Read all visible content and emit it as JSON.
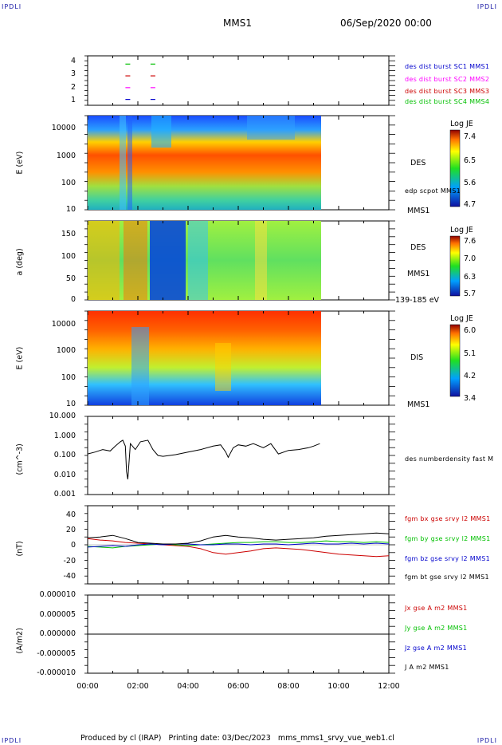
{
  "corner_label": "IPDLI",
  "header": {
    "spacecraft": "MMS1",
    "date": "06/Sep/2020 00:00"
  },
  "footer": {
    "text": "Produced by cl (IRAP)   Printing date: 03/Dec/2023   mms_mms1_srvy_vue_web1.cl"
  },
  "colors": {
    "red": "#ff0000",
    "green": "#00c000",
    "blue": "#0000ff",
    "magenta": "#ff00ff",
    "black": "#000000"
  },
  "chart_data": [
    {
      "type": "scatter",
      "panel": "burst availability",
      "yticks": [
        "4",
        "3",
        "2",
        "1"
      ],
      "legend": [
        {
          "label": "des dist burst SC1 MMS1",
          "color": "#0000cc"
        },
        {
          "label": "des dist burst SC2 MMS2",
          "color": "#ff00ff"
        },
        {
          "label": "des dist burst SC3 MMS3",
          "color": "#cc0000"
        },
        {
          "label": "des dist burst SC4 MMS4",
          "color": "#00c000"
        }
      ],
      "marks": [
        {
          "sc": 4,
          "t": [
            1.6,
            2.6
          ]
        },
        {
          "sc": 3,
          "t": [
            1.6,
            2.6
          ]
        },
        {
          "sc": 2,
          "t": [
            1.6,
            2.6
          ]
        },
        {
          "sc": 1,
          "t": [
            1.6,
            2.6
          ]
        }
      ]
    },
    {
      "type": "heatmap",
      "panel": "DES energy spectrogram",
      "ylabel": "E (eV)",
      "yticks": [
        "10000",
        "1000",
        "100",
        "10"
      ],
      "right_labels": [
        "DES",
        "edp scpot MMS1",
        "MMS1"
      ],
      "colorbar": {
        "title": "Log JE",
        "ticks": [
          "7.4",
          "6.5",
          "5.6",
          "4.7"
        ],
        "range": [
          4.7,
          7.4
        ]
      },
      "data_end_hours": 9.25
    },
    {
      "type": "heatmap",
      "panel": "DES pitch angle",
      "ylabel": "a (deg)",
      "yticks": [
        "150",
        "100",
        "50",
        "0"
      ],
      "right_labels": [
        "DES",
        "MMS1",
        "139-185 eV"
      ],
      "colorbar": {
        "title": "Log JE",
        "ticks": [
          "7.6",
          "7.0",
          "6.3",
          "5.7"
        ],
        "range": [
          5.7,
          7.6
        ]
      },
      "data_end_hours": 9.25
    },
    {
      "type": "heatmap",
      "panel": "DIS energy spectrogram",
      "ylabel": "E (eV)",
      "yticks": [
        "10000",
        "1000",
        "100",
        "10"
      ],
      "right_labels": [
        "DIS",
        "MMS1"
      ],
      "colorbar": {
        "title": "Log JE",
        "ticks": [
          "6.0",
          "5.1",
          "4.2",
          "3.4"
        ],
        "range": [
          3.4,
          6.0
        ]
      },
      "data_end_hours": 9.25
    },
    {
      "type": "line",
      "panel": "density",
      "ylabel": "(cm^-3)",
      "yticks": [
        "10.000",
        "1.000",
        "0.100",
        "0.010",
        "0.001"
      ],
      "legend": [
        {
          "label": "des numberdensity fast M",
          "color": "#000000"
        }
      ],
      "series": [
        {
          "name": "des numberdensity fast M",
          "x": [
            0.0,
            0.3,
            0.6,
            0.9,
            1.1,
            1.3,
            1.4,
            1.5,
            1.55,
            1.6,
            1.7,
            1.9,
            2.1,
            2.4,
            2.6,
            2.8,
            3.0,
            3.5,
            4.0,
            4.5,
            5.0,
            5.3,
            5.5,
            5.6,
            5.8,
            6.0,
            6.3,
            6.6,
            7.0,
            7.3,
            7.6,
            8.0,
            8.4,
            8.8,
            9.0,
            9.25
          ],
          "values": [
            0.12,
            0.15,
            0.2,
            0.17,
            0.3,
            0.5,
            0.6,
            0.3,
            0.015,
            0.006,
            0.4,
            0.2,
            0.5,
            0.6,
            0.2,
            0.1,
            0.09,
            0.11,
            0.15,
            0.2,
            0.3,
            0.35,
            0.15,
            0.08,
            0.25,
            0.35,
            0.3,
            0.4,
            0.25,
            0.4,
            0.12,
            0.18,
            0.2,
            0.25,
            0.3,
            0.4
          ]
        }
      ]
    },
    {
      "type": "line",
      "panel": "magnetic field",
      "ylabel": "(nT)",
      "yticks": [
        "40",
        "20",
        "0",
        "-20",
        "-40"
      ],
      "ylim": [
        -50,
        50
      ],
      "legend": [
        {
          "label": "fgm bx gse srvy l2 MMS1",
          "color": "#cc0000"
        },
        {
          "label": "fgm by gse srvy l2 MMS1",
          "color": "#00c000"
        },
        {
          "label": "fgm bz gse srvy l2 MMS1",
          "color": "#0000cc"
        },
        {
          "label": "fgm bt gse srvy l2 MMS1",
          "color": "#000000"
        }
      ],
      "x": [
        0.0,
        0.5,
        1.0,
        1.5,
        2.0,
        2.5,
        3.0,
        3.5,
        4.0,
        4.5,
        5.0,
        5.5,
        6.0,
        6.5,
        7.0,
        7.5,
        8.0,
        8.5,
        9.0,
        9.5,
        10.0,
        10.5,
        11.0,
        11.5,
        12.0
      ],
      "series": [
        {
          "name": "fgm bx gse srvy l2 MMS1",
          "values": [
            8,
            6,
            5,
            3,
            2,
            1,
            0,
            -1,
            -2,
            -5,
            -10,
            -12,
            -10,
            -8,
            -5,
            -4,
            -5,
            -6,
            -8,
            -10,
            -12,
            -13,
            -14,
            -15,
            -14
          ]
        },
        {
          "name": "fgm by gse srvy l2 MMS1",
          "values": [
            -2,
            -3,
            -4,
            -2,
            -1,
            0,
            1,
            0,
            -1,
            0,
            1,
            2,
            3,
            3,
            4,
            4,
            3,
            3,
            4,
            5,
            4,
            4,
            3,
            4,
            3
          ]
        },
        {
          "name": "fgm bz gse srvy l2 MMS1",
          "values": [
            -3,
            -2,
            -1,
            -2,
            0,
            1,
            0,
            1,
            1,
            0,
            0,
            1,
            1,
            0,
            1,
            1,
            0,
            1,
            2,
            1,
            1,
            2,
            1,
            2,
            1
          ]
        },
        {
          "name": "fgm bt gse srvy l2 MMS1",
          "values": [
            9,
            10,
            12,
            8,
            3,
            2,
            1,
            1,
            2,
            5,
            10,
            12,
            10,
            9,
            7,
            6,
            7,
            8,
            9,
            11,
            12,
            13,
            14,
            15,
            14
          ]
        }
      ]
    },
    {
      "type": "line",
      "panel": "current density",
      "ylabel": "(A/m2)",
      "yticks": [
        "0.000010",
        "0.000005",
        "0.000000",
        "-0.000005",
        "-0.000010"
      ],
      "ylim": [
        -1e-05,
        1e-05
      ],
      "legend": [
        {
          "label": "Jx gse A m2 MMS1",
          "color": "#cc0000"
        },
        {
          "label": "Jy gse A m2 MMS1",
          "color": "#00c000"
        },
        {
          "label": "Jz gse A m2 MMS1",
          "color": "#0000cc"
        },
        {
          "label": "J A m2 MMS1",
          "color": "#000000"
        }
      ],
      "series": [
        {
          "name": "J A m2 MMS1",
          "x": [
            0.0,
            0.67,
            0.7,
            2.6,
            2.65,
            12.0
          ],
          "values": [
            0,
            0,
            0,
            0,
            0,
            0
          ]
        }
      ]
    }
  ],
  "xaxis": {
    "ticks": [
      "00:00",
      "02:00",
      "04:00",
      "06:00",
      "08:00",
      "10:00",
      "12:00"
    ],
    "range": [
      0,
      12
    ]
  }
}
